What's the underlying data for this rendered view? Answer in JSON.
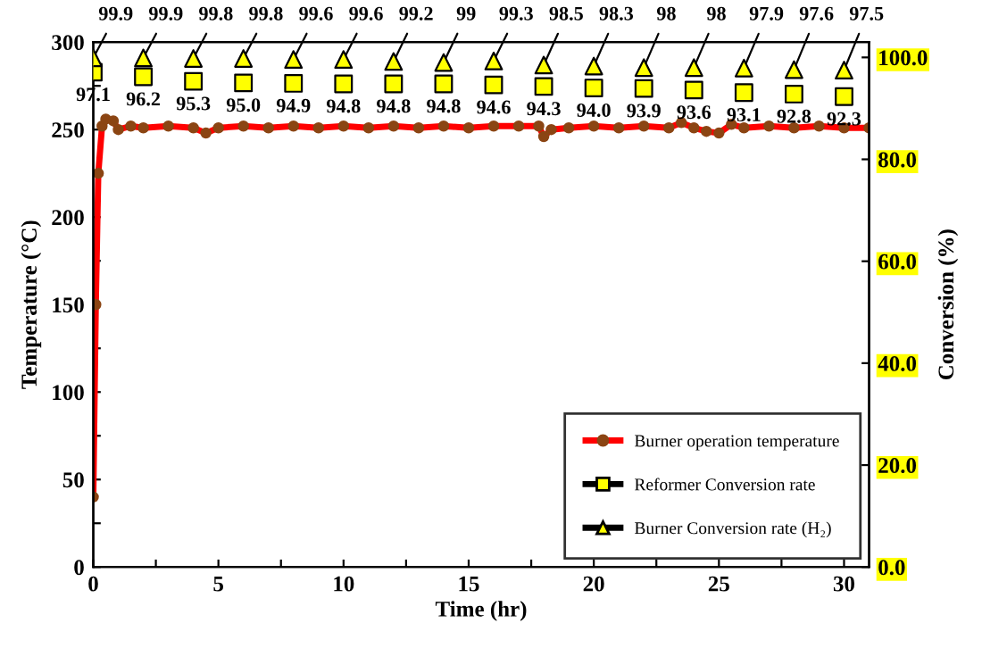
{
  "chart_data": {
    "type": "line",
    "xlabel": "Time (hr)",
    "ylabel": "Temperature (°C)",
    "y2label": "Conversion (%)",
    "xlim": [
      0,
      31
    ],
    "xticks": [
      0,
      {
        "value": 2.5,
        "label": null
      },
      5,
      {
        "value": 7.5,
        "label": null
      },
      10,
      {
        "value": 12.5,
        "label": null
      },
      15,
      {
        "value": 17.5,
        "label": null
      },
      20,
      {
        "value": 22.5,
        "label": null
      },
      25,
      {
        "value": 27.5,
        "label": null
      },
      30
    ],
    "ylim": [
      0,
      300
    ],
    "yticks": [
      0,
      {
        "value": 25,
        "label": null
      },
      50,
      {
        "value": 75,
        "label": null
      },
      100,
      {
        "value": 125,
        "label": null
      },
      150,
      {
        "value": 175,
        "label": null
      },
      200,
      {
        "value": 225,
        "label": null
      },
      250,
      {
        "value": 275,
        "label": null
      },
      300
    ],
    "y2lim": [
      0,
      103
    ],
    "y2ticks": [
      {
        "value": 0,
        "label": "0.0"
      },
      {
        "value": 20,
        "label": "20.0"
      },
      {
        "value": 40,
        "label": "40.0"
      },
      {
        "value": 60,
        "label": "60.0"
      },
      {
        "value": 80,
        "label": "80.0"
      },
      {
        "value": 100,
        "label": "100.0"
      }
    ],
    "grid": false,
    "legend": "bottom right",
    "series": [
      {
        "name": "Burner operation temperature",
        "color": "#ff0000",
        "marker": "circle",
        "x": [
          0,
          0.1,
          0.2,
          0.35,
          0.5,
          0.8,
          1,
          1.5,
          2,
          3,
          4,
          4.5,
          5,
          6,
          7,
          8,
          9,
          10,
          11,
          12,
          13,
          14,
          15,
          16,
          17,
          17.8,
          18,
          18.3,
          19,
          20,
          21,
          22,
          23,
          23.5,
          24,
          24.5,
          25,
          25.5,
          26,
          27,
          28,
          29,
          30,
          31
        ],
        "values": [
          40,
          150,
          225,
          252,
          256,
          255,
          250,
          252,
          251,
          252,
          251,
          248,
          251,
          252,
          251,
          252,
          251,
          252,
          251,
          252,
          251,
          252,
          251,
          252,
          252,
          252,
          246,
          250,
          251,
          252,
          251,
          252,
          251,
          254,
          251,
          249,
          248,
          253,
          251,
          252,
          251,
          252,
          251,
          251
        ]
      },
      {
        "name": "Reformer Conversion rate",
        "type": "scatter",
        "axis": "y2",
        "color": "#ffff00",
        "marker": "square",
        "x": [
          0,
          2,
          4,
          6,
          8,
          10,
          12,
          14,
          16,
          18,
          20,
          22,
          24,
          26,
          28,
          30
        ],
        "values": [
          97.1,
          96.2,
          95.3,
          95.0,
          94.9,
          94.8,
          94.8,
          94.8,
          94.6,
          94.3,
          94.0,
          93.9,
          93.6,
          93.1,
          92.8,
          92.3
        ],
        "value_labels": [
          "97.1",
          "96.2",
          "95.3",
          "95.0",
          "94.9",
          "94.8",
          "94.8",
          "94.8",
          "94.6",
          "94.3",
          "94.0",
          "93.9",
          "93.6",
          "93.1",
          "92.8",
          "92.3"
        ]
      },
      {
        "name": "Burner Conversion rate (H₂)",
        "type": "scatter",
        "axis": "y2",
        "color": "#ffff00",
        "marker": "triangle",
        "x": [
          0,
          2,
          4,
          6,
          8,
          10,
          12,
          14,
          16,
          18,
          20,
          22,
          24,
          26,
          28,
          30
        ],
        "values": [
          99.9,
          99.9,
          99.8,
          99.8,
          99.6,
          99.6,
          99.2,
          99,
          99.3,
          98.5,
          98.3,
          98,
          98,
          97.9,
          97.6,
          97.5
        ],
        "value_labels": [
          "99.9",
          "99.9",
          "99.8",
          "99.8",
          "99.6",
          "99.6",
          "99.2",
          "99",
          "99.3",
          "98.5",
          "98.3",
          "98",
          "98",
          "97.9",
          "97.6",
          "97.5"
        ]
      }
    ]
  }
}
